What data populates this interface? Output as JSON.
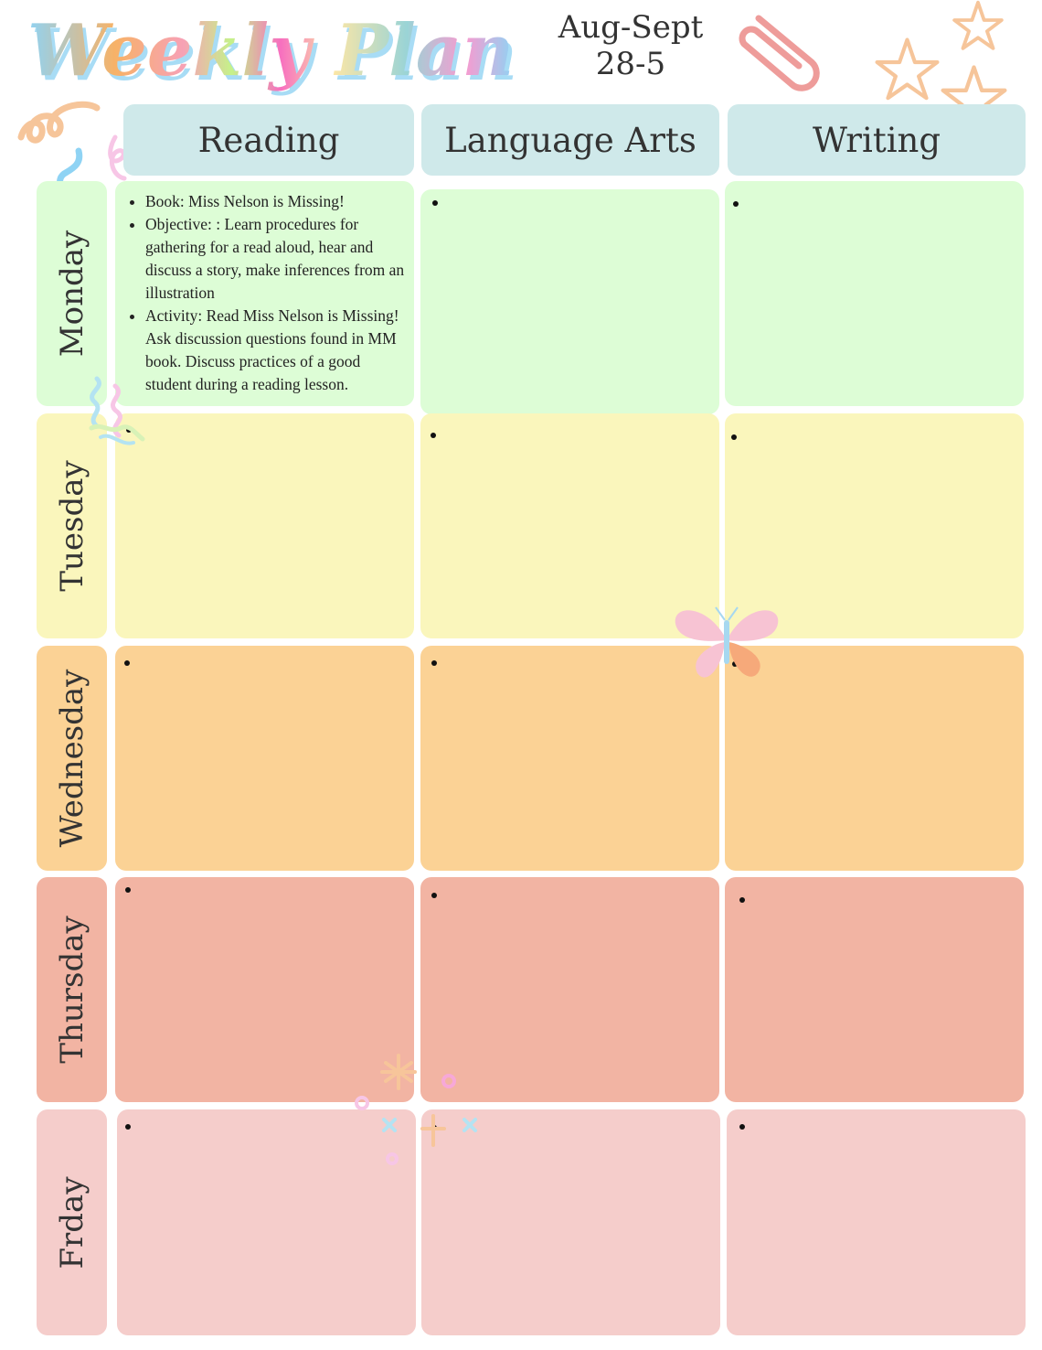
{
  "title": "Weekly Plan",
  "date": {
    "line1": "Aug-Sept",
    "line2": "28-5"
  },
  "subjects": [
    "Reading",
    "Language Arts",
    "Writing"
  ],
  "days": [
    "Monday",
    "Tuesday",
    "Wednesday",
    "Thursday",
    "Frday"
  ],
  "colors": {
    "header": "#cfe9ea",
    "monday": "#ddfdd6",
    "tuesday": "#faf6bc",
    "wednesday": "#fbd295",
    "thursday": "#f2b4a3",
    "friday": "#f5cdcb"
  },
  "plan": {
    "monday": {
      "reading": [
        "Book: Miss Nelson is Missing!",
        "Objective: : Learn procedures for gathering for a read aloud, hear and discuss a story, make inferences from an illustration",
        "Activity: Read Miss Nelson is Missing! Ask discussion questions found in MM book. Discuss practices of a good student during a reading lesson."
      ]
    }
  },
  "decorations": [
    "swirl-icon",
    "paperclip-icon",
    "star-icon",
    "butterfly-icon",
    "confetti-icon"
  ]
}
